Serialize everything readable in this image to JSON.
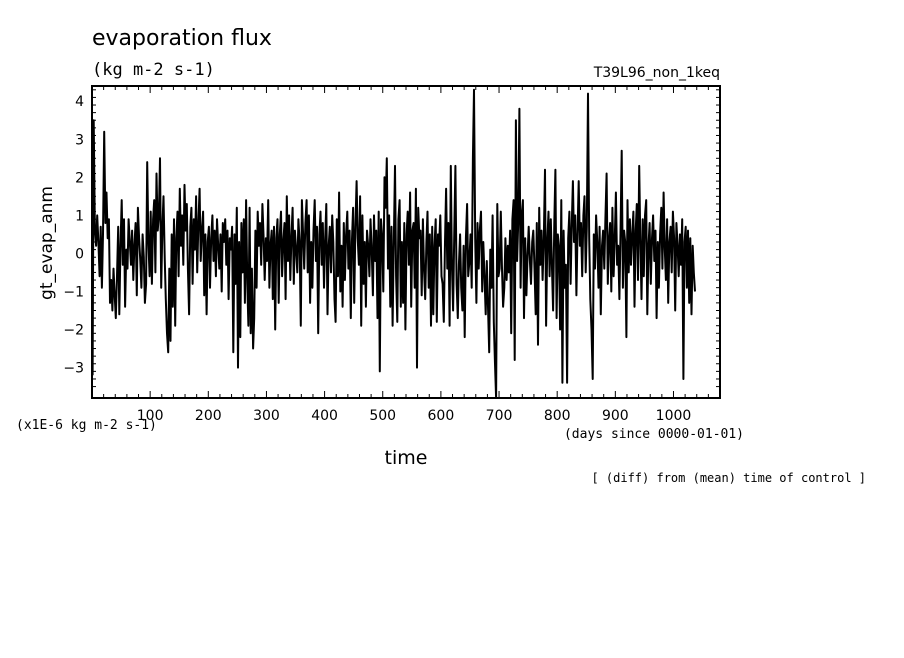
{
  "chart_data": {
    "type": "line",
    "title": "evaporation flux",
    "units": "(kg m-2 s-1)",
    "run_label": "T39L96_non_1keq",
    "ylabel": "gt_evap_anm",
    "xlabel": "time",
    "x_unit_note": "(days since 0000-01-01)",
    "y_scale_note": "(x1E-6 kg m-2 s-1)",
    "footnote": "[ (diff) from (mean) time of control ]",
    "xlim": [
      0,
      1080
    ],
    "ylim": [
      -3.8,
      4.4
    ],
    "x_ticks": [
      "100",
      "200",
      "300",
      "400",
      "500",
      "600",
      "700",
      "800",
      "900",
      "1000"
    ],
    "y_ticks": [
      "4",
      "3",
      "2",
      "1",
      "0",
      "-1",
      "-2",
      "-3"
    ],
    "series": [
      {
        "color": "#000000",
        "x_start": 1,
        "x_step": 2,
        "values": [
          -3.2,
          3.5,
          0.6,
          0.2,
          1.0,
          0.3,
          -0.6,
          0.7,
          -0.9,
          0.5,
          3.2,
          0.8,
          1.6,
          0.4,
          0.9,
          -1.3,
          -0.7,
          -1.5,
          -0.4,
          -1.1,
          -1.7,
          -0.6,
          0.7,
          -1.6,
          0.2,
          1.4,
          -0.3,
          0.9,
          -1.4,
          0.1,
          -0.4,
          0.9,
          0.3,
          -0.3,
          0.6,
          -0.7,
          0.2,
          0.8,
          -1.1,
          1.2,
          0.4,
          -0.2,
          -0.9,
          0.5,
          -0.1,
          -1.3,
          -0.8,
          2.4,
          0.3,
          -0.6,
          1.1,
          -0.8,
          0.9,
          1.4,
          -0.5,
          2.1,
          0.6,
          1.0,
          2.5,
          -0.9,
          0.7,
          1.5,
          -0.1,
          -1.2,
          -2.1,
          -2.6,
          -0.4,
          -2.3,
          0.5,
          -1.4,
          0.9,
          -1.9,
          0.4,
          1.1,
          -0.6,
          1.7,
          0.2,
          1.0,
          -0.3,
          1.8,
          0.6,
          1.3,
          -0.4,
          -1.6,
          0.7,
          1.2,
          -0.8,
          0.9,
          0.1,
          1.5,
          -0.5,
          0.8,
          1.7,
          -0.2,
          0.6,
          1.1,
          -1.1,
          0.5,
          -1.6,
          0.3,
          0.7,
          -0.9,
          0.4,
          1.0,
          -0.2,
          0.6,
          -0.6,
          0.9,
          0.2,
          -0.4,
          0.5,
          -1.0,
          0.8,
          0.3,
          0.9,
          -0.3,
          0.6,
          -1.2,
          0.4,
          0.1,
          0.7,
          -2.6,
          0.5,
          -0.8,
          1.2,
          -3.0,
          0.3,
          -2.2,
          0.8,
          -0.5,
          0.9,
          -1.3,
          1.4,
          -0.8,
          -1.9,
          1.2,
          -2.1,
          -0.4,
          -2.5,
          -1.7,
          0.6,
          -0.9,
          1.1,
          0.2,
          0.8,
          -0.3,
          1.3,
          0.5,
          -0.7,
          0.4,
          -0.2,
          1.4,
          -0.9,
          0.2,
          0.6,
          -1.2,
          0.7,
          -2.0,
          0.4,
          0.9,
          -1.3,
          0.5,
          1.1,
          -0.6,
          0.3,
          0.8,
          -1.2,
          1.5,
          -0.2,
          1.0,
          -0.7,
          0.4,
          1.2,
          -0.8,
          0.6,
          0.1,
          -0.5,
          0.9,
          0.3,
          -1.9,
          1.4,
          0.5,
          -0.4,
          0.8,
          1.4,
          -0.5,
          1.0,
          -1.3,
          0.3,
          -0.9,
          0.6,
          1.4,
          -0.2,
          0.7,
          -2.1,
          0.5,
          1.1,
          -0.3,
          0.8,
          -0.9,
          0.4,
          1.3,
          -1.6,
          0.2,
          0.7,
          -0.5,
          1.0,
          0.3,
          -1.2,
          -1.8,
          0.9,
          -0.6,
          1.6,
          -1.0,
          0.2,
          -1.4,
          0.8,
          -0.7,
          0.5,
          1.1,
          -0.4,
          0.6,
          -1.7,
          0.3,
          1.2,
          -1.3,
          0.7,
          1.9,
          0.4,
          -0.3,
          1.5,
          -1.9,
          1.0,
          -0.8,
          0.3,
          -1.4,
          0.6,
          0.2,
          -0.6,
          0.9,
          0.1,
          -1.1,
          1.0,
          -0.2,
          0.6,
          -1.7,
          1.1,
          -3.1,
          0.9,
          0.4,
          -1.0,
          2.0,
          1.2,
          2.5,
          -0.4,
          1.0,
          -1.4,
          0.7,
          -1.9,
          0.3,
          2.3,
          -0.6,
          -1.8,
          0.9,
          1.4,
          -1.4,
          0.3,
          -1.3,
          0.8,
          -2.0,
          0.5,
          1.1,
          -0.3,
          1.6,
          -1.4,
          0.6,
          0.8,
          -0.9,
          1.7,
          -3.0,
          1.2,
          0.4,
          0.6,
          -1.1,
          0.9,
          -0.4,
          -1.2,
          0.3,
          1.1,
          -0.9,
          0.5,
          -1.9,
          0.7,
          -1.6,
          0.2,
          0.9,
          -1.8,
          0.5,
          0.2,
          1.0,
          -0.6,
          -0.8,
          -1.8,
          0.3,
          1.7,
          -0.4,
          0.8,
          -1.9,
          2.3,
          -0.3,
          -1.5,
          0.6,
          2.3,
          -0.8,
          -1.7,
          -0.3,
          0.5,
          -0.9,
          -1.5,
          0.2,
          -2.2,
          0.4,
          1.3,
          -0.6,
          -0.2,
          0.5,
          -0.9,
          2.5,
          4.3,
          0.4,
          -1.3,
          0.8,
          -0.4,
          0.6,
          1.1,
          -1.0,
          0.3,
          -0.6,
          -1.6,
          -0.2,
          -1.4,
          -2.6,
          0.1,
          -0.9,
          1.0,
          -1.8,
          -2.9,
          -3.8,
          1.3,
          -0.6,
          -0.4,
          1.1,
          -0.3,
          -1.4,
          -0.9,
          0.4,
          -0.7,
          0.2,
          -0.5,
          0.6,
          -2.1,
          0.9,
          1.4,
          -2.8,
          3.5,
          -0.2,
          0.8,
          3.8,
          -0.9,
          1.0,
          1.4,
          -1.7,
          0.4,
          -1.1,
          -0.1,
          0.7,
          -0.2,
          -0.8,
          0.3,
          0.6,
          -0.4,
          -1.6,
          0.8,
          -2.4,
          1.2,
          -0.3,
          0.6,
          -0.7,
          0.4,
          2.2,
          -1.9,
          0.3,
          1.1,
          -0.6,
          0.9,
          -0.4,
          -1.5,
          0.8,
          2.2,
          -1.7,
          0.5,
          0.2,
          -2.0,
          1.4,
          -3.4,
          0.6,
          -0.9,
          -0.3,
          -3.4,
          0.4,
          1.1,
          -0.8,
          0.7,
          1.9,
          0.3,
          1.0,
          -1.1,
          0.5,
          1.9,
          0.2,
          0.8,
          -0.6,
          1.0,
          1.5,
          -0.5,
          0.7,
          4.2,
          0.4,
          -1.2,
          -2.0,
          -3.3,
          0.5,
          -0.4,
          1.0,
          0.3,
          -0.9,
          0.7,
          -1.6,
          0.2,
          0.6,
          -0.4,
          0.9,
          2.1,
          -0.8,
          0.3,
          0.8,
          -1.0,
          1.2,
          -0.6,
          0.4,
          1.6,
          -0.3,
          0.2,
          -1.2,
          0.7,
          2.7,
          -0.9,
          0.6,
          0.3,
          -2.2,
          1.4,
          -0.5,
          0.9,
          -0.3,
          0.5,
          1.1,
          -1.4,
          0.6,
          1.3,
          -0.7,
          2.3,
          0.4,
          -1.2,
          0.9,
          -0.6,
          1.0,
          1.4,
          -1.6,
          0.2,
          0.8,
          -0.8,
          0.4,
          1.0,
          -0.2,
          0.6,
          -1.7,
          0.3,
          -0.9,
          0.5,
          1.2,
          -0.4,
          1.6,
          0.1,
          -0.7,
          0.9,
          -1.3,
          0.3,
          0.7,
          -0.5,
          1.1,
          0.4,
          -1.5,
          0.8,
          0.2,
          -0.6,
          0.5,
          -0.3,
          0.9,
          -3.3,
          0.3,
          0.7,
          -0.9,
          0.6,
          -1.3,
          0.4,
          -1.6,
          0.2,
          -0.5,
          -1.0
        ]
      }
    ]
  }
}
